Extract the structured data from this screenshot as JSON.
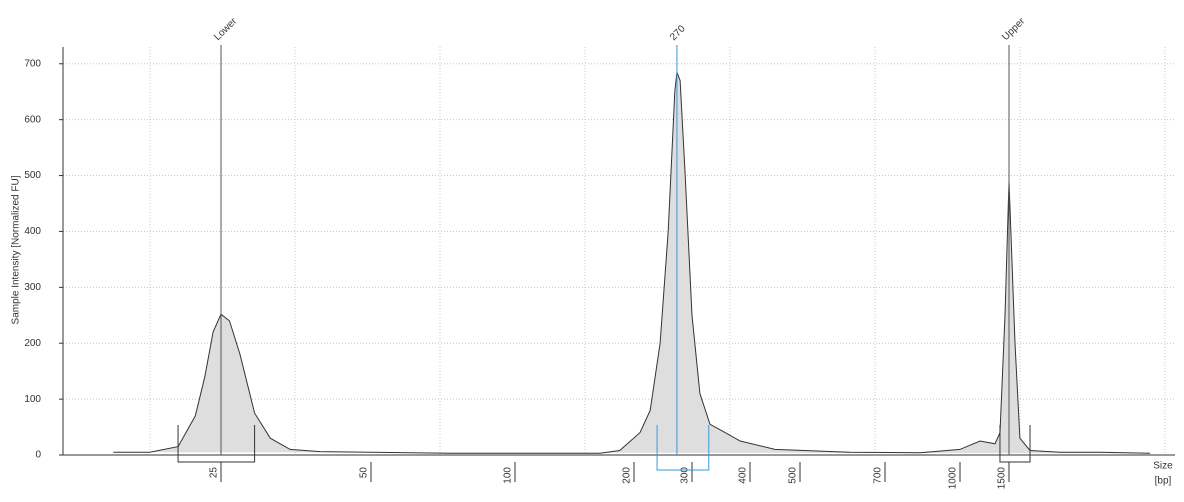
{
  "chart_data": {
    "type": "area",
    "y_label": "Sample Intensity [Normalized FU]",
    "x_label": "Size",
    "x_unit": "[bp]",
    "x": [
      15.2,
      18,
      20.5,
      22.2,
      23.2,
      24.1,
      25,
      26,
      27.3,
      29.2,
      31.4,
      34.4,
      39.5,
      50,
      73,
      100,
      164,
      184,
      208.6,
      224,
      240,
      254,
      266,
      270,
      276,
      286,
      300,
      312,
      328,
      345,
      381,
      447,
      609,
      827,
      1000,
      1180,
      1336,
      1392,
      1451,
      1500,
      1576,
      1642,
      1785,
      2290,
      3180,
      4820
    ],
    "series": [
      {
        "color": "#dedede",
        "line_color": "#333333",
        "values": [
          5,
          5,
          15,
          70,
          140,
          220,
          252,
          240,
          180,
          75,
          30,
          10,
          6,
          5,
          3,
          3,
          3,
          8,
          40,
          80,
          200,
          400,
          650,
          685,
          670,
          500,
          250,
          110,
          55,
          45,
          25,
          10,
          5,
          4,
          10,
          25,
          20,
          40,
          250,
          490,
          200,
          30,
          8,
          5,
          5,
          3
        ]
      }
    ],
    "xticks": [
      25,
      50,
      100,
      200,
      300,
      400,
      500,
      700,
      1000,
      1500
    ],
    "ylim": [
      0,
      730
    ],
    "yticks": [
      0,
      100,
      200,
      300,
      400,
      500,
      600,
      700
    ],
    "x_log": true,
    "grid": true,
    "peaks": [
      {
        "label": "Lower",
        "x": 25,
        "y": 252,
        "color": "#555555",
        "region": [
          20.5,
          29.2
        ],
        "bracket_depth": 7
      },
      {
        "label": "270",
        "x": 270,
        "y": 685,
        "color": "#3a9ad9",
        "region": [
          235,
          326
        ],
        "bracket_depth": 15
      },
      {
        "label": "Upper",
        "x": 1500,
        "y": 490,
        "color": "#555555",
        "region": [
          1392,
          1785
        ],
        "bracket_depth": 7
      }
    ]
  }
}
